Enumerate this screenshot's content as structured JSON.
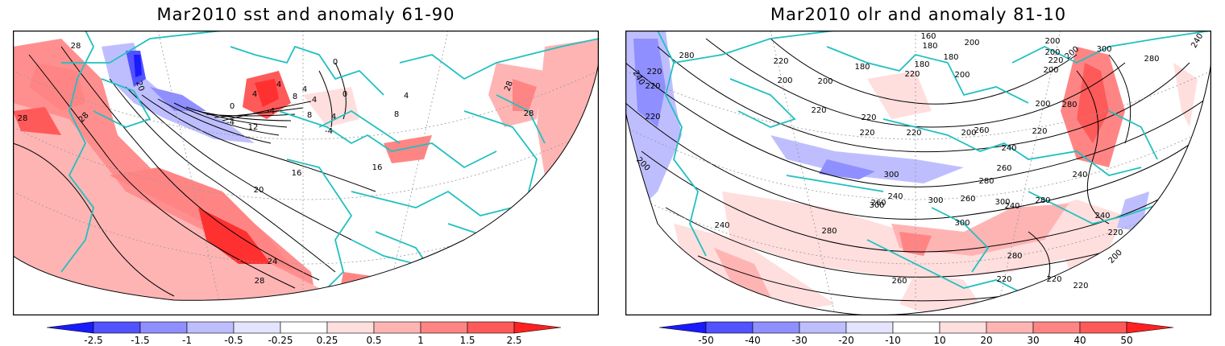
{
  "panels": [
    {
      "title": "Mar2010 sst and anomaly 61-90",
      "colorbar": {
        "ticks": [
          "-2.5",
          "-1.5",
          "-1",
          "-0.5",
          "-0.25",
          "0.25",
          "0.5",
          "1",
          "1.5",
          "2.5"
        ],
        "colors": [
          "#1a1aff",
          "#5252ff",
          "#8f8fff",
          "#bebeff",
          "#e4e4ff",
          "#ffffff",
          "#ffdede",
          "#ffb4b4",
          "#ff8585",
          "#ff5a5a",
          "#ff2020"
        ]
      },
      "contour_labels": [
        "28",
        "20",
        "28",
        "28",
        "28",
        "0",
        "4",
        "4",
        "8",
        "0",
        "4",
        "12",
        "16",
        "20",
        "24",
        "28",
        "-4",
        "-4",
        "4",
        "8",
        "0",
        "-4",
        "16",
        "8",
        "4",
        "28",
        "4"
      ]
    },
    {
      "title": "Mar2010 olr and anomaly 81-10",
      "colorbar": {
        "ticks": [
          "-50",
          "-40",
          "-30",
          "-20",
          "-10",
          "10",
          "20",
          "30",
          "40",
          "50"
        ],
        "colors": [
          "#1a1aff",
          "#5252ff",
          "#8f8fff",
          "#bebeff",
          "#e4e4ff",
          "#ffffff",
          "#ffdede",
          "#ffb4b4",
          "#ff8585",
          "#ff5a5a",
          "#ff2020"
        ]
      },
      "contour_labels": [
        "240",
        "280",
        "220",
        "220",
        "220",
        "200",
        "180",
        "160",
        "180",
        "180",
        "200",
        "200",
        "200",
        "220",
        "200",
        "240",
        "280",
        "300",
        "200",
        "200",
        "180",
        "200",
        "200",
        "220",
        "220",
        "220",
        "220",
        "220",
        "200",
        "220",
        "200",
        "220",
        "240",
        "260",
        "260",
        "280",
        "300",
        "300",
        "300",
        "280",
        "260",
        "300",
        "240",
        "300",
        "240",
        "280",
        "240",
        "260",
        "240",
        "280",
        "220",
        "200",
        "240",
        "220",
        "260",
        "220",
        "280",
        "220"
      ]
    }
  ]
}
